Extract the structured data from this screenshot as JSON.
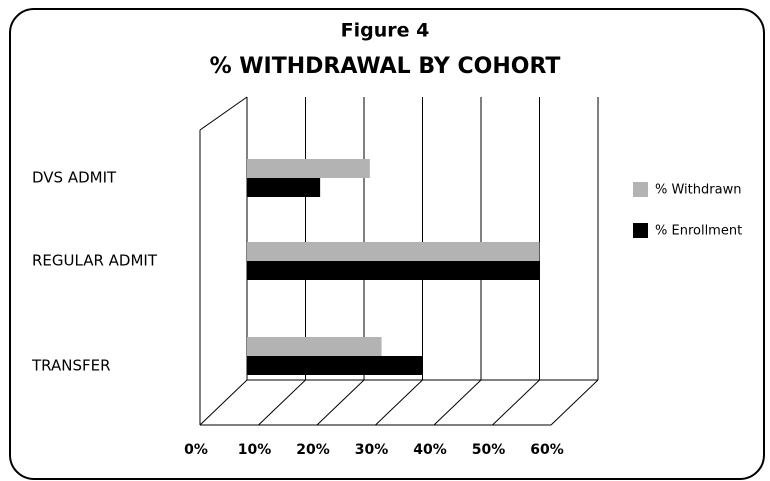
{
  "chart_data": {
    "type": "bar",
    "orientation": "horizontal",
    "title": "Figure 4",
    "subtitle": "% WITHDRAWAL BY COHORT",
    "categories": [
      "DVS ADMIT",
      "REGULAR ADMIT",
      "TRANSFER"
    ],
    "series": [
      {
        "name": "% Withdrawn",
        "color": "#b3b3b3",
        "values": [
          21,
          50,
          23
        ]
      },
      {
        "name": "% Enrollment",
        "color": "#000000",
        "values": [
          12.5,
          50,
          30
        ]
      }
    ],
    "xlim": [
      0,
      60
    ],
    "xticks": [
      {
        "value": 0,
        "label": "0%"
      },
      {
        "value": 10,
        "label": "10%"
      },
      {
        "value": 20,
        "label": "20%"
      },
      {
        "value": 30,
        "label": "30%"
      },
      {
        "value": 40,
        "label": "40%"
      },
      {
        "value": 50,
        "label": "50%"
      },
      {
        "value": 60,
        "label": "60%"
      }
    ],
    "grid": true,
    "legend": "right"
  }
}
